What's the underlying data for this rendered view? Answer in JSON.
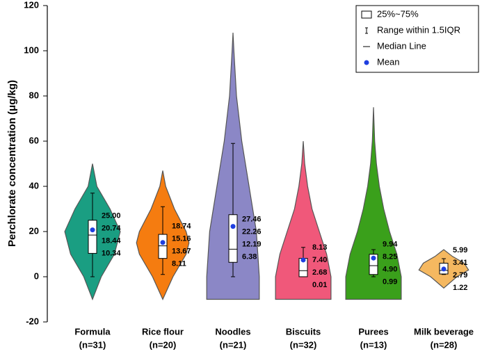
{
  "chart_data": {
    "type": "violin",
    "y_label": "Perchlorate concentration (μg/kg)",
    "ylim": [
      -20,
      120
    ],
    "yticks": [
      -20,
      0,
      20,
      40,
      60,
      80,
      100,
      120
    ],
    "categories": [
      "Formula",
      "Rice flour",
      "Noodles",
      "Biscuits",
      "Purees",
      "Milk beverage"
    ],
    "sample_sizes": [
      "(n=31)",
      "(n=20)",
      "(n=21)",
      "(n=32)",
      "(n=13)",
      "(n=28)"
    ],
    "legend": {
      "position": "upper right",
      "entries": [
        "25%~75%",
        "Range within 1.5IQR",
        "Median Line",
        "Mean"
      ]
    },
    "mean_color": "#1f3fe0",
    "series": [
      {
        "name": "Formula",
        "color": "#1a9e82",
        "q3": 25.0,
        "mean": 20.74,
        "median": 18.44,
        "q1": 10.34,
        "value_labels": {
          "q3": "25.00",
          "mean": "20.74",
          "median": "18.44",
          "q1": "10.34"
        },
        "whisker": [
          0,
          37
        ],
        "violin": {
          "y": [
            -10,
            0,
            10,
            20,
            30,
            40,
            50
          ],
          "width": [
            0,
            0.3,
            0.75,
            0.95,
            0.6,
            0.15,
            0
          ]
        }
      },
      {
        "name": "Rice flour",
        "color": "#f57c10",
        "q3": 18.74,
        "mean": 15.16,
        "median": 13.67,
        "q1": 8.11,
        "value_labels": {
          "q3": "18.74",
          "mean": "15.16",
          "median": "13.67",
          "q1": "8.11"
        },
        "whisker": [
          1,
          31
        ],
        "violin": {
          "y": [
            -10,
            0,
            10,
            15,
            20,
            30,
            40,
            47
          ],
          "width": [
            0,
            0.35,
            0.8,
            0.9,
            0.8,
            0.4,
            0.1,
            0
          ]
        }
      },
      {
        "name": "Noodles",
        "color": "#8b87c6",
        "q3": 27.46,
        "mean": 22.26,
        "median": 12.19,
        "q1": 6.38,
        "value_labels": {
          "q3": "27.46",
          "mean": "22.26",
          "median": "12.19",
          "q1": "6.38"
        },
        "whisker": [
          0,
          59
        ],
        "violin": {
          "y": [
            -10,
            0,
            20,
            40,
            60,
            80,
            100,
            108
          ],
          "width": [
            0.9,
            0.9,
            0.8,
            0.55,
            0.3,
            0.12,
            0.03,
            0
          ]
        }
      },
      {
        "name": "Biscuits",
        "color": "#f0587a",
        "q3": 8.13,
        "mean": 7.4,
        "median": 2.68,
        "q1": 0.01,
        "value_labels": {
          "q3": "8.13",
          "mean": "7.40",
          "median": "2.68",
          "q1": "0.01"
        },
        "whisker": [
          0,
          13
        ],
        "violin": {
          "y": [
            -10,
            0,
            10,
            20,
            30,
            40,
            50,
            60
          ],
          "width": [
            0.95,
            0.95,
            0.8,
            0.55,
            0.3,
            0.15,
            0.05,
            0
          ]
        }
      },
      {
        "name": "Purees",
        "color": "#3aa01b",
        "q3": 9.94,
        "mean": 8.25,
        "median": 4.9,
        "q1": 0.99,
        "value_labels": {
          "q3": "9.94",
          "mean": "8.25",
          "median": "4.90",
          "q1": "0.99"
        },
        "whisker": [
          0,
          12
        ],
        "violin": {
          "y": [
            -10,
            0,
            10,
            20,
            30,
            40,
            50,
            60,
            75
          ],
          "width": [
            0.95,
            0.95,
            0.8,
            0.55,
            0.35,
            0.2,
            0.1,
            0.04,
            0
          ]
        }
      },
      {
        "name": "Milk beverage",
        "color": "#f5b860",
        "q3": 5.99,
        "mean": 3.41,
        "median": 2.79,
        "q1": 1.22,
        "value_labels": {
          "q3": "5.99",
          "mean": "3.41",
          "median": "2.79",
          "q1": "1.22"
        },
        "whisker": [
          1,
          8
        ],
        "violin": {
          "y": [
            -5,
            0,
            3,
            6,
            9,
            12
          ],
          "width": [
            0,
            0.45,
            0.85,
            0.7,
            0.3,
            0
          ]
        }
      }
    ]
  }
}
